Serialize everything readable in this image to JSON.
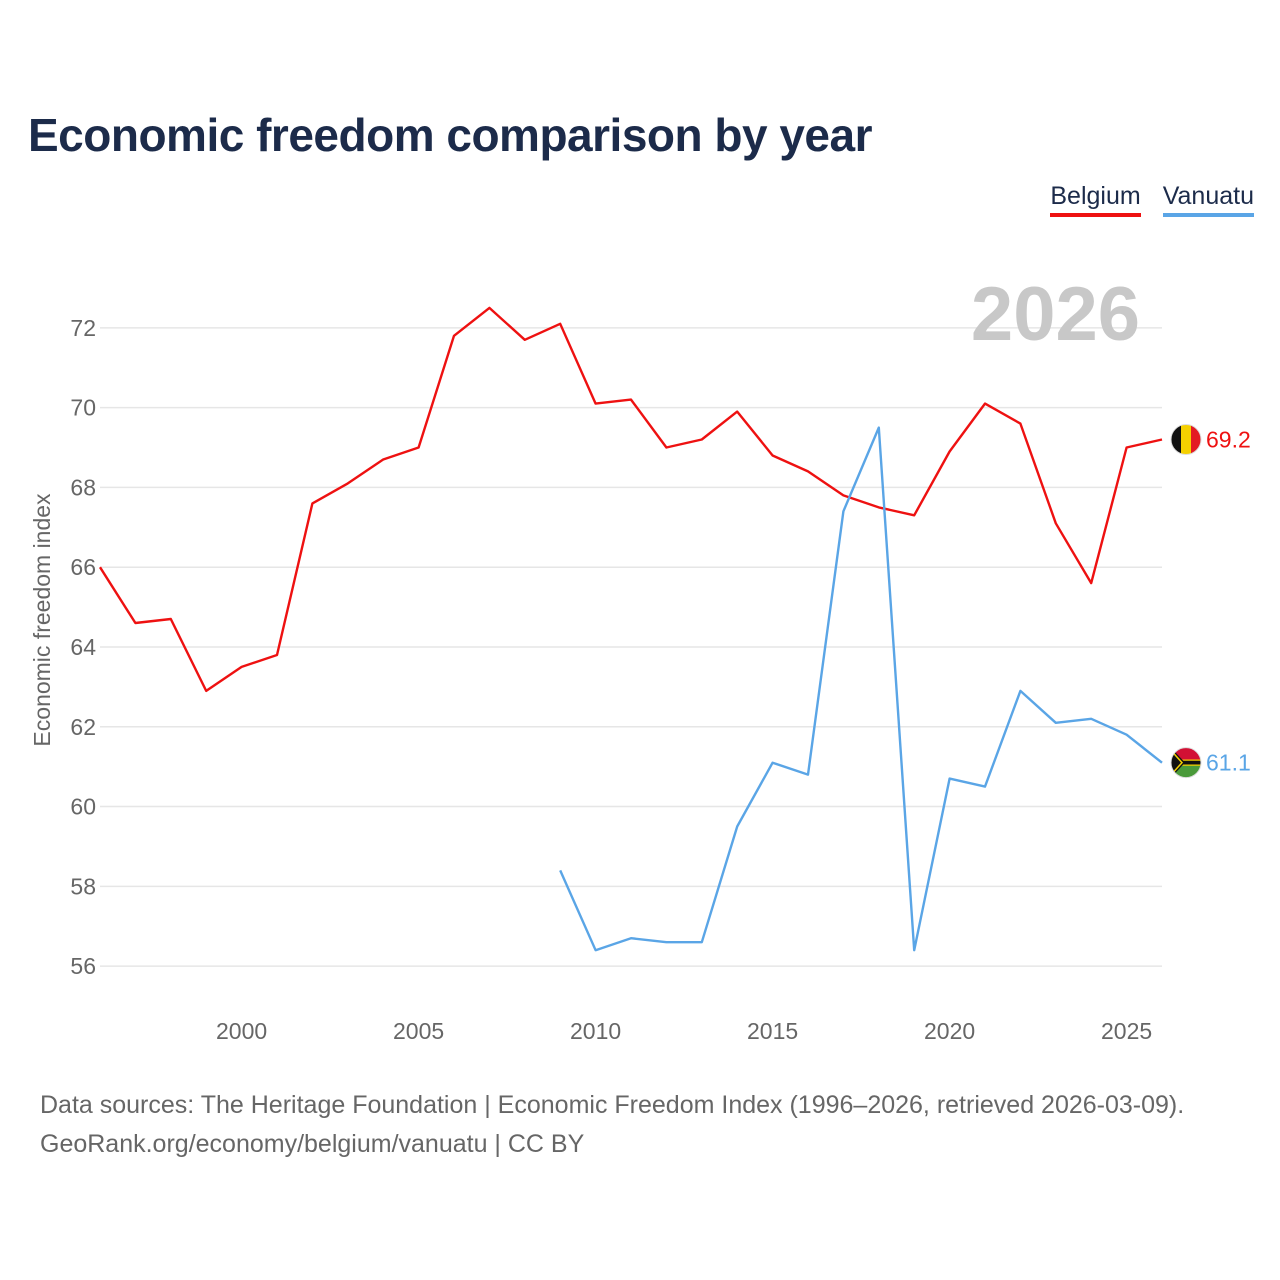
{
  "chart_data": {
    "type": "line",
    "title": "Economic freedom comparison by year",
    "ylabel": "Economic freedom index",
    "xlabel": "",
    "watermark_year": "2026",
    "xlim": [
      1996,
      2026
    ],
    "ylim": [
      55,
      73.5
    ],
    "x_ticks": [
      2000,
      2005,
      2010,
      2015,
      2020,
      2025
    ],
    "y_ticks": [
      56,
      58,
      60,
      62,
      64,
      66,
      68,
      70,
      72
    ],
    "grid": true,
    "legend_position": "top-right",
    "series": [
      {
        "name": "Belgium",
        "color": "#ee1111",
        "end_label": "69.2",
        "flag_icon": "belgium-flag-icon",
        "x": [
          1996,
          1997,
          1998,
          1999,
          2000,
          2001,
          2002,
          2003,
          2004,
          2005,
          2006,
          2007,
          2008,
          2009,
          2010,
          2011,
          2012,
          2013,
          2014,
          2015,
          2016,
          2017,
          2018,
          2019,
          2020,
          2021,
          2022,
          2023,
          2024,
          2025,
          2026
        ],
        "values": [
          66.0,
          64.6,
          64.7,
          62.9,
          63.5,
          63.8,
          67.6,
          68.1,
          68.7,
          69.0,
          71.8,
          72.5,
          71.7,
          72.1,
          70.1,
          70.2,
          69.0,
          69.2,
          69.9,
          68.8,
          68.4,
          67.8,
          67.5,
          67.3,
          68.9,
          70.1,
          69.6,
          67.1,
          65.6,
          69.0,
          69.2
        ]
      },
      {
        "name": "Vanuatu",
        "color": "#5aa5e6",
        "end_label": "61.1",
        "flag_icon": "vanuatu-flag-icon",
        "x": [
          2009,
          2010,
          2011,
          2012,
          2013,
          2014,
          2015,
          2016,
          2017,
          2018,
          2019,
          2020,
          2021,
          2022,
          2023,
          2024,
          2025,
          2026
        ],
        "values": [
          58.4,
          56.4,
          56.7,
          56.6,
          56.6,
          59.5,
          61.1,
          60.8,
          67.4,
          69.5,
          56.4,
          60.7,
          60.5,
          62.9,
          62.1,
          62.2,
          61.8,
          61.1
        ]
      }
    ]
  },
  "footer": {
    "line1": "Data sources: The Heritage Foundation | Economic Freedom Index (1996–2026, retrieved 2026-03-09).",
    "line2": "GeoRank.org/economy/belgium/vanuatu | CC BY"
  }
}
